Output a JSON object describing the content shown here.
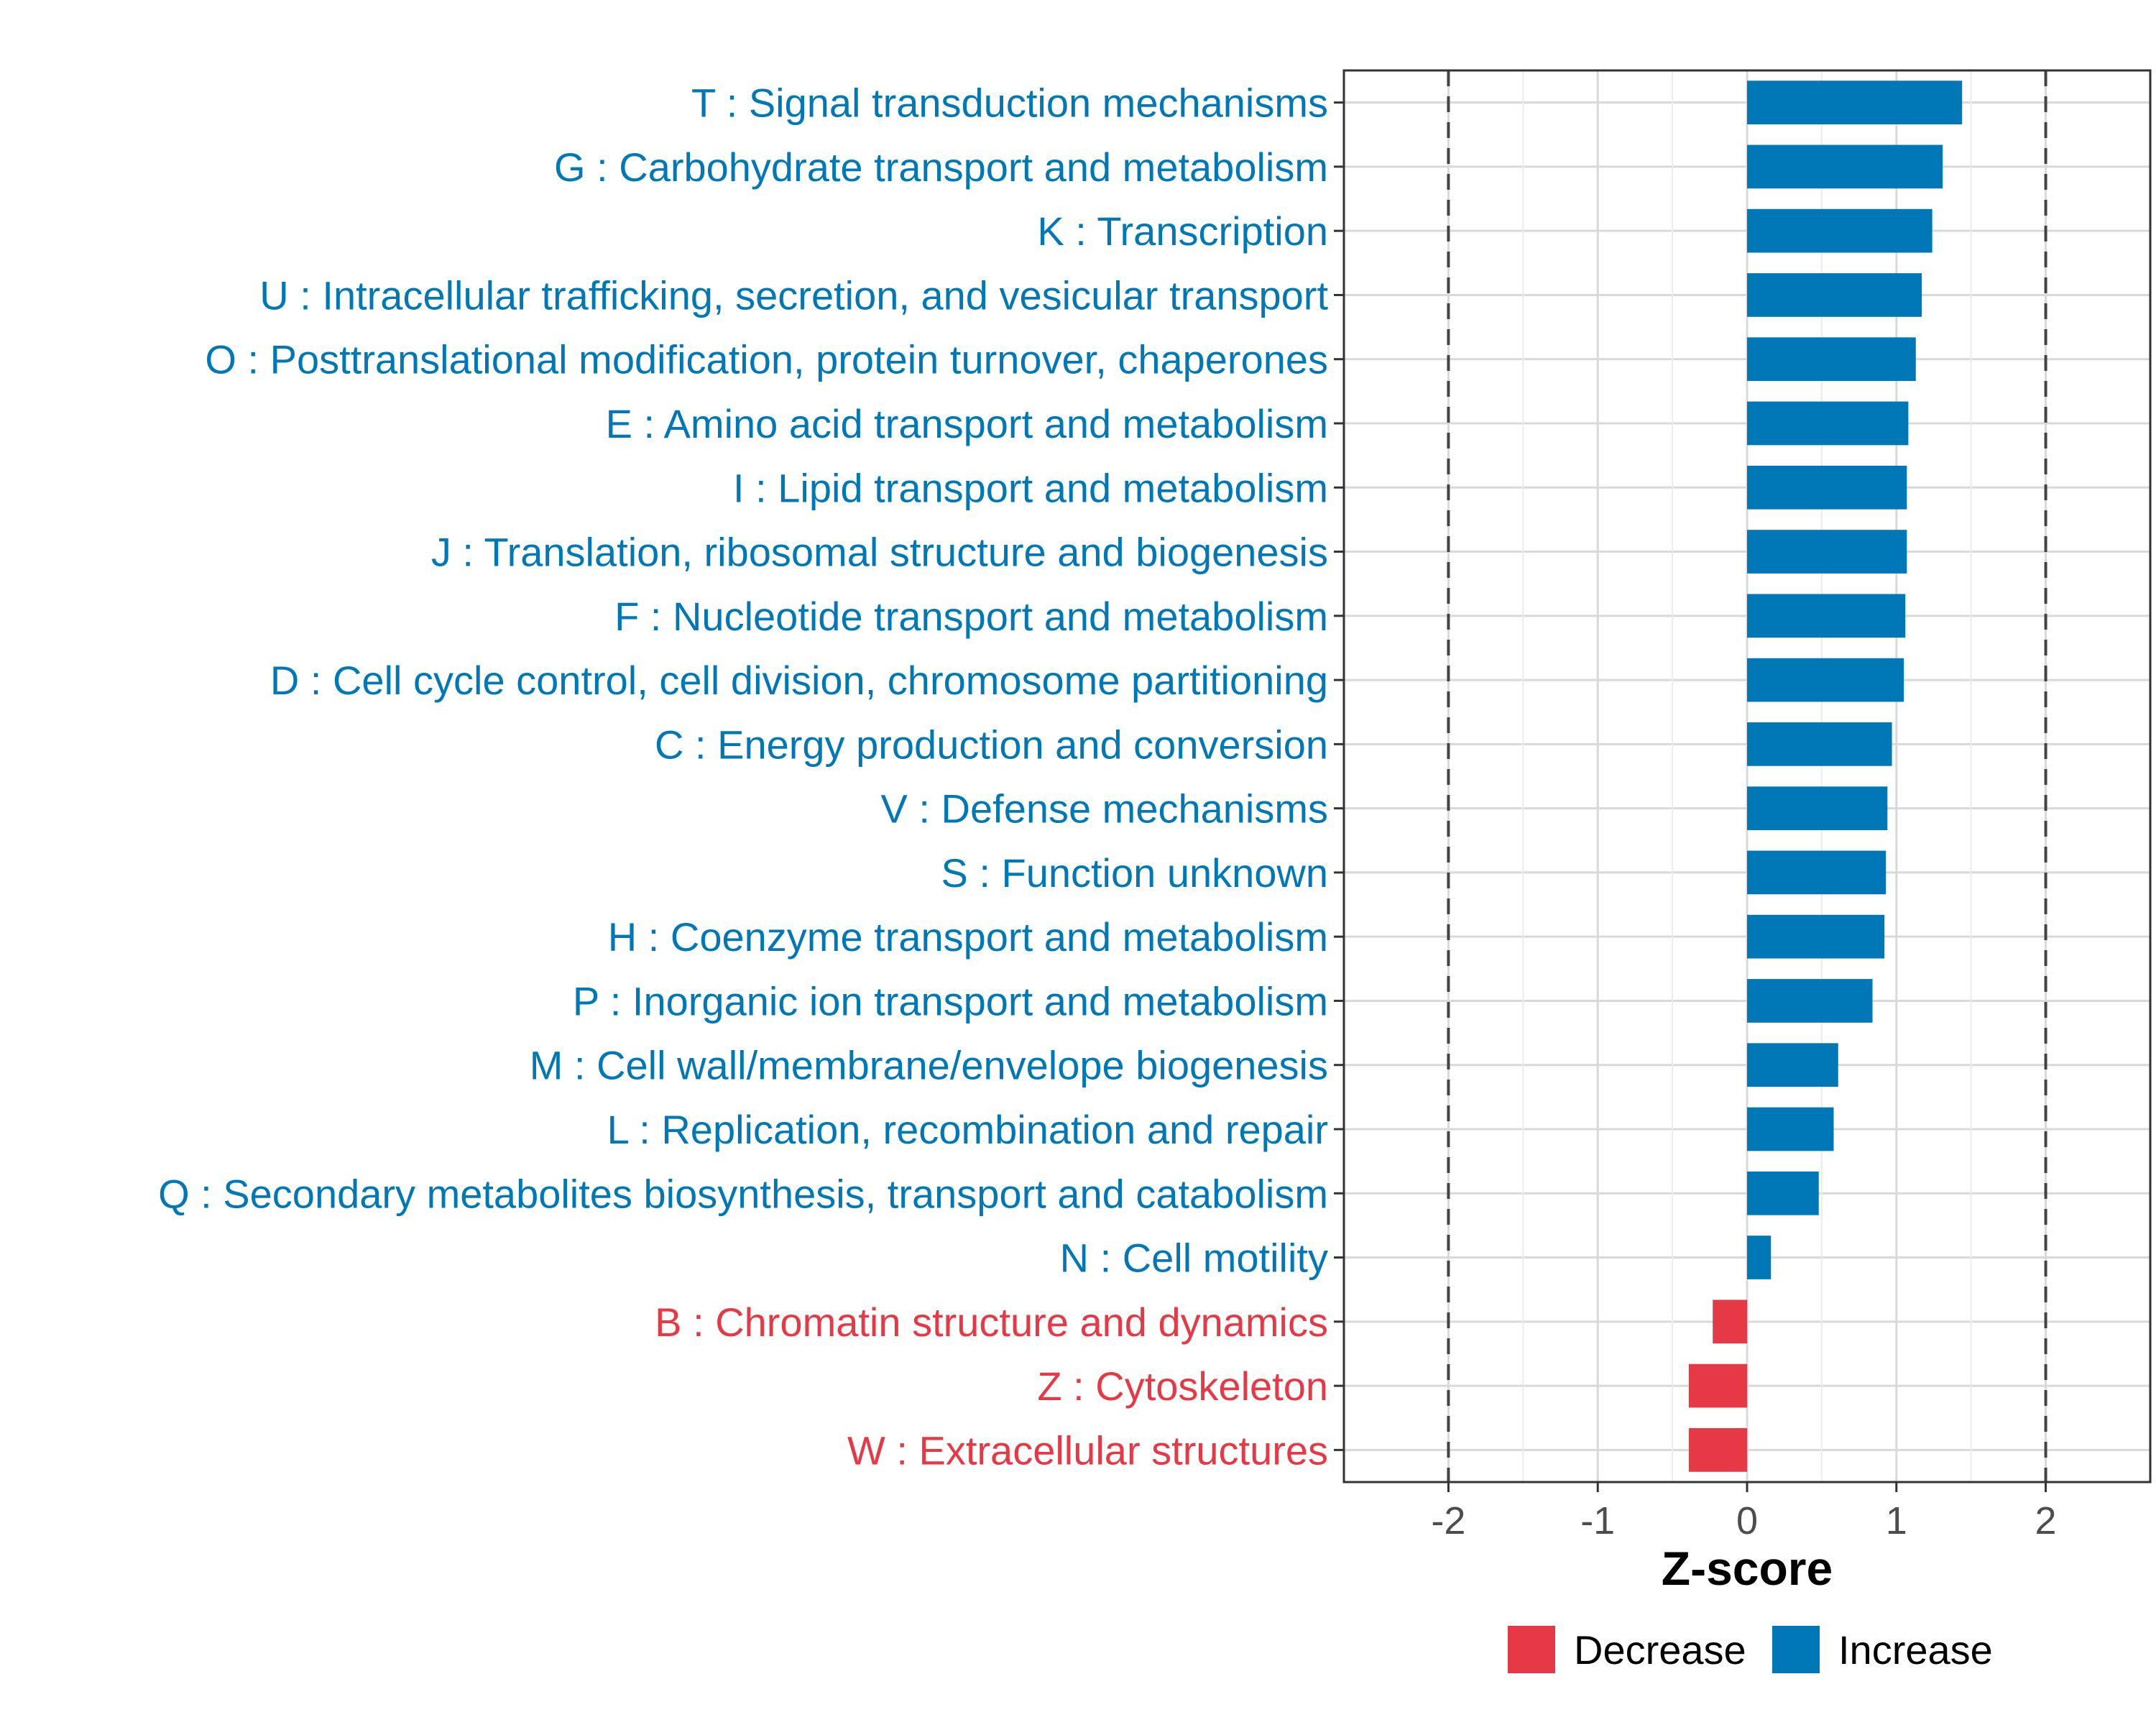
{
  "chart_data": {
    "type": "bar",
    "orientation": "horizontal",
    "xlabel": "Z-score",
    "xlim": [
      -2.7,
      2.7
    ],
    "x_ticks": [
      -2,
      -1,
      0,
      1,
      2
    ],
    "x_tick_labels": [
      "-2",
      "-1",
      "0",
      "1",
      "2"
    ],
    "reference_lines": [
      -2,
      2
    ],
    "grid": true,
    "legend_position": "bottom",
    "legend": [
      {
        "label": "Decrease",
        "color": "#E63946"
      },
      {
        "label": "Increase",
        "color": "#0077B6"
      }
    ],
    "categories": [
      "T : Signal transduction mechanisms",
      "G : Carbohydrate transport and metabolism",
      "K : Transcription",
      "U : Intracellular trafficking, secretion, and vesicular transport",
      "O : Posttranslational modification, protein turnover, chaperones",
      "E : Amino acid transport and metabolism",
      "I : Lipid transport and metabolism",
      "J : Translation, ribosomal structure and biogenesis",
      "F : Nucleotide transport and metabolism",
      "D : Cell cycle control, cell division, chromosome partitioning",
      "C : Energy production and conversion",
      "V : Defense mechanisms",
      "S : Function unknown",
      "H : Coenzyme transport and metabolism",
      "P : Inorganic ion transport and metabolism",
      "M : Cell wall/membrane/envelope biogenesis",
      "L : Replication, recombination and repair",
      "Q : Secondary metabolites biosynthesis, transport and catabolism",
      "N : Cell motility",
      "B : Chromatin structure and dynamics",
      "Z : Cytoskeleton",
      "W : Extracellular structures"
    ],
    "values": [
      1.44,
      1.31,
      1.24,
      1.17,
      1.13,
      1.08,
      1.07,
      1.07,
      1.06,
      1.05,
      0.97,
      0.94,
      0.93,
      0.92,
      0.84,
      0.61,
      0.58,
      0.48,
      0.16,
      -0.23,
      -0.39,
      -0.39
    ],
    "groups": [
      "Increase",
      "Increase",
      "Increase",
      "Increase",
      "Increase",
      "Increase",
      "Increase",
      "Increase",
      "Increase",
      "Increase",
      "Increase",
      "Increase",
      "Increase",
      "Increase",
      "Increase",
      "Increase",
      "Increase",
      "Increase",
      "Increase",
      "Decrease",
      "Decrease",
      "Decrease"
    ]
  }
}
